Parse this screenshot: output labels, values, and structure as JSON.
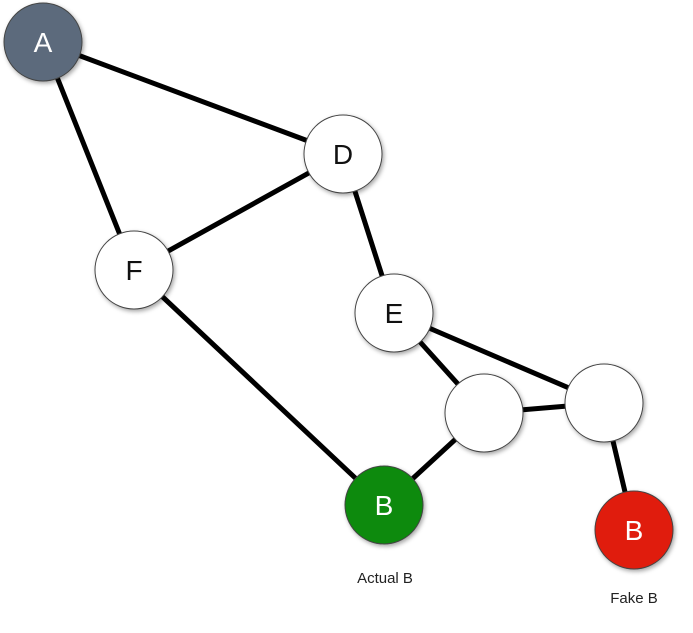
{
  "nodes": [
    {
      "id": "A",
      "label": "A",
      "fill": "#5b6b7b",
      "text_color": "#ffffff"
    },
    {
      "id": "D",
      "label": "D",
      "fill": "#ffffff",
      "text_color": "#111111"
    },
    {
      "id": "F",
      "label": "F",
      "fill": "#ffffff",
      "text_color": "#111111"
    },
    {
      "id": "E",
      "label": "E",
      "fill": "#ffffff",
      "text_color": "#111111"
    },
    {
      "id": "N1",
      "label": "",
      "fill": "#ffffff",
      "text_color": "#111111"
    },
    {
      "id": "N2",
      "label": "",
      "fill": "#ffffff",
      "text_color": "#111111"
    },
    {
      "id": "B_actual",
      "label": "B",
      "fill": "#078a07",
      "text_color": "#ffffff"
    },
    {
      "id": "B_fake",
      "label": "B",
      "fill": "#e01a0a",
      "text_color": "#ffffff"
    }
  ],
  "edges": [
    [
      "A",
      "D"
    ],
    [
      "A",
      "F"
    ],
    [
      "D",
      "F"
    ],
    [
      "D",
      "E"
    ],
    [
      "F",
      "B_actual"
    ],
    [
      "E",
      "N1"
    ],
    [
      "E",
      "N2"
    ],
    [
      "N1",
      "N2"
    ],
    [
      "N1",
      "B_actual"
    ],
    [
      "N2",
      "B_fake"
    ]
  ],
  "captions": {
    "actual_b": "Actual B",
    "fake_b": "Fake B"
  },
  "colors": {
    "edge": "#000000",
    "node_outline": "#444444"
  }
}
